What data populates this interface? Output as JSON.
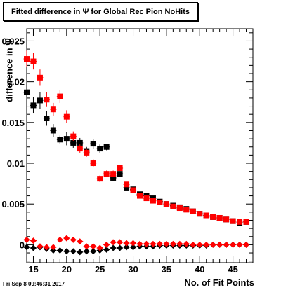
{
  "title": "Fitted difference in  Ψ  for Global Rec Pion NoHits",
  "timestamp": "Fri Sep  8 09:46:31 2017",
  "chart_data": {
    "type": "scatter",
    "title": "Fitted difference in  Ψ  for Global Rec Pion NoHits",
    "xlabel": "No. of Fit Points",
    "ylabel": "difference in Ψ",
    "xlim": [
      14,
      48
    ],
    "ylim": [
      -0.0022,
      0.0265
    ],
    "xticks": [
      15,
      20,
      25,
      30,
      35,
      40,
      45
    ],
    "xtick_labels": [
      "15",
      "20",
      "25",
      "30",
      "35",
      "40",
      "45"
    ],
    "yticks": [
      0,
      0.005,
      0.01,
      0.015,
      0.02,
      0.025
    ],
    "ytick_labels": [
      "0",
      "0.005",
      "0.01",
      "0.015",
      "0.02",
      "0.025"
    ],
    "grid": false,
    "series": [
      {
        "color": "#000000",
        "marker": "square",
        "x": [
          14,
          15,
          16,
          17,
          18,
          19,
          20,
          21,
          22,
          23,
          24,
          25,
          26,
          27,
          28,
          29,
          30,
          31,
          32,
          33,
          34,
          35,
          36,
          37,
          38,
          39,
          40,
          41,
          42,
          43,
          44,
          45,
          46,
          47
        ],
        "y": [
          0.0187,
          0.0171,
          0.0177,
          0.0155,
          0.014,
          0.0129,
          0.013,
          0.0125,
          0.0125,
          0.0115,
          0.0124,
          0.0118,
          0.012,
          0.0082,
          0.0087,
          0.007,
          0.0068,
          0.0062,
          0.006,
          0.0057,
          0.0053,
          0.005,
          0.0048,
          0.0046,
          0.0044,
          0.0041,
          0.0038,
          0.0036,
          0.0034,
          0.0033,
          0.0031,
          0.0029,
          0.0027,
          0.0028
        ],
        "err": [
          0.001,
          0.001,
          0.001,
          0.0009,
          0.0008,
          0.0005,
          0.0008,
          0.0006,
          0.0006,
          0.0005,
          0.0006,
          0.0005,
          0.0004,
          0.0004,
          0.0003,
          0.0003,
          0.0003,
          0.0002,
          0.0002,
          0.0002,
          0.0002,
          0.0002,
          0.0002,
          0.0002,
          0.0002,
          0.0002,
          0.0002,
          0.0002,
          0.0002,
          0.0002,
          0.0002,
          0.0002,
          0.0002,
          0.0002
        ]
      },
      {
        "color": "#ff0000",
        "marker": "square",
        "x": [
          14,
          15,
          16,
          17,
          18,
          19,
          20,
          21,
          22,
          23,
          24,
          25,
          26,
          27,
          28,
          29,
          30,
          31,
          32,
          33,
          34,
          35,
          36,
          37,
          38,
          39,
          40,
          41,
          42,
          43,
          44,
          45,
          46,
          47
        ],
        "y": [
          0.0228,
          0.0225,
          0.0205,
          0.0178,
          0.0166,
          0.0182,
          0.0157,
          0.0133,
          0.0118,
          0.0113,
          0.01,
          0.0081,
          0.0087,
          0.0087,
          0.0094,
          0.0074,
          0.0067,
          0.006,
          0.0057,
          0.0054,
          0.0052,
          0.005,
          0.0047,
          0.0045,
          0.0043,
          0.0041,
          0.0038,
          0.0036,
          0.0034,
          0.0033,
          0.0031,
          0.0029,
          0.0028,
          0.0028
        ],
        "err": [
          0.001,
          0.001,
          0.001,
          0.0009,
          0.0008,
          0.0008,
          0.0008,
          0.0006,
          0.0005,
          0.0005,
          0.0005,
          0.0004,
          0.0004,
          0.0004,
          0.0003,
          0.0003,
          0.0003,
          0.0002,
          0.0002,
          0.0002,
          0.0002,
          0.0002,
          0.0002,
          0.0002,
          0.0002,
          0.0002,
          0.0002,
          0.0002,
          0.0002,
          0.0002,
          0.0002,
          0.0002,
          0.0002,
          0.0002
        ]
      },
      {
        "color": "#000000",
        "marker": "diamond",
        "x": [
          14,
          15,
          16,
          17,
          18,
          19,
          20,
          21,
          22,
          23,
          24,
          25,
          26,
          27,
          28,
          29,
          30,
          31,
          32,
          33,
          34,
          35,
          36,
          37,
          38,
          39,
          40,
          41,
          42,
          43,
          44,
          45,
          46,
          47
        ],
        "y": [
          -0.0003,
          -0.0004,
          -0.0003,
          -0.0005,
          -0.0007,
          -0.0007,
          -0.0008,
          -0.0008,
          -0.0009,
          -0.0008,
          -0.0008,
          -0.0007,
          -0.0006,
          -0.0004,
          -0.0004,
          -0.0003,
          -0.0003,
          -0.0002,
          -0.0002,
          -0.0002,
          -0.0001,
          -0.0001,
          -0.0001,
          -0.0001,
          -0.0001,
          -0.0001,
          -0.0001,
          -0.0001,
          0,
          0,
          0,
          0,
          0,
          0
        ],
        "err": [
          0.0002,
          0.0002,
          0.0002,
          0.0002,
          0.0002,
          0.0002,
          0.0002,
          0.0002,
          0.0002,
          0.0002,
          0.0002,
          0.0002,
          0.0001,
          0.0001,
          0.0001,
          0.0001,
          0.0001,
          0.0001,
          0.0001,
          0.0001,
          0.0001,
          0.0001,
          0.0001,
          0.0001,
          0.0001,
          0.0001,
          0.0001,
          0.0001,
          0.0001,
          0.0001,
          0.0001,
          0.0001,
          0.0001,
          0.0001
        ]
      },
      {
        "color": "#ff0000",
        "marker": "diamond",
        "x": [
          14,
          15,
          16,
          17,
          18,
          19,
          20,
          21,
          22,
          23,
          24,
          25,
          26,
          27,
          28,
          29,
          30,
          31,
          32,
          33,
          34,
          35,
          36,
          37,
          38,
          39,
          40,
          41,
          42,
          43,
          44,
          45,
          46,
          47
        ],
        "y": [
          0.0006,
          0.0005,
          -0.0002,
          -0.0003,
          -0.0003,
          0.0006,
          0.0008,
          0.0006,
          0.0004,
          -0.0002,
          -0.0002,
          -0.0004,
          0,
          0.0003,
          0.0003,
          0.0002,
          0.0002,
          0.0001,
          0.0001,
          0.0001,
          0.0001,
          0.0001,
          0.0001,
          0.0001,
          0.0001,
          0,
          0,
          0,
          0,
          0,
          0,
          0,
          0,
          0
        ],
        "err": [
          0.0002,
          0.0002,
          0.0002,
          0.0002,
          0.0002,
          0.0002,
          0.0002,
          0.0002,
          0.0002,
          0.0002,
          0.0002,
          0.0002,
          0.0001,
          0.0001,
          0.0001,
          0.0001,
          0.0001,
          0.0001,
          0.0001,
          0.0001,
          0.0001,
          0.0001,
          0.0001,
          0.0001,
          0.0001,
          0.0001,
          0.0001,
          0.0001,
          0.0001,
          0.0001,
          0.0001,
          0.0001,
          0.0001,
          0.0001
        ]
      }
    ]
  }
}
